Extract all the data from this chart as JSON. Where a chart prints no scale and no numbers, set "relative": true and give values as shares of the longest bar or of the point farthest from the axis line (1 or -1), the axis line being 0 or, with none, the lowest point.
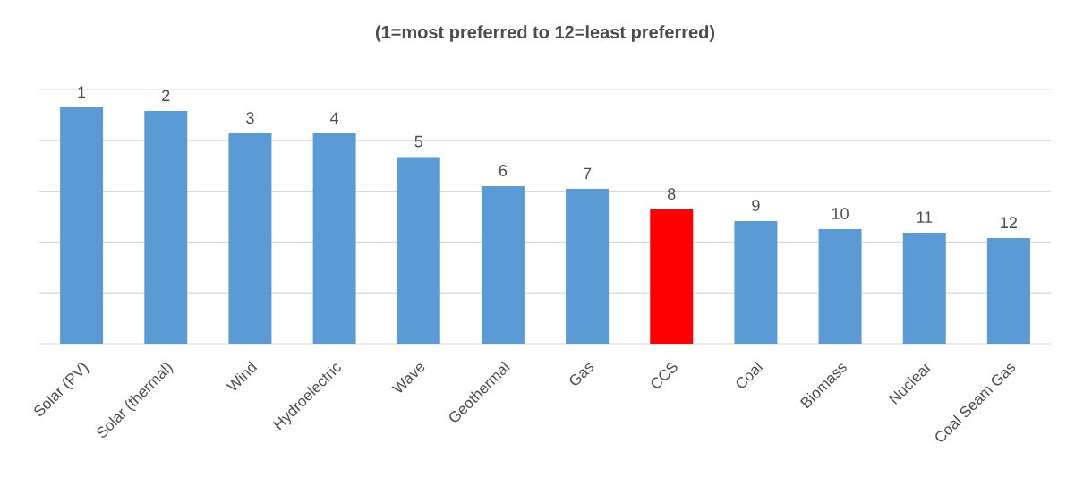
{
  "chart_data": {
    "type": "bar",
    "title": "(1=most preferred to 12=least preferred)",
    "categories": [
      "Solar (PV)",
      "Solar (thermal)",
      "Wind",
      "Hydroelectric",
      "Wave",
      "Geothermal",
      "Gas",
      "CCS",
      "Coal",
      "Biomass",
      "Nuclear",
      "Coal Seam Gas"
    ],
    "values": [
      1,
      0.985,
      0.89,
      0.89,
      0.79,
      0.667,
      0.655,
      0.568,
      0.519,
      0.485,
      0.47,
      0.447
    ],
    "annotations": [
      {
        "text": "1",
        "x": "Solar (PV)",
        "y": 1
      },
      {
        "text": "2",
        "x": "Solar (thermal)",
        "y": 0.985
      },
      {
        "text": "3",
        "x": "Wind",
        "y": 0.89
      },
      {
        "text": "4",
        "x": "Hydroelectric",
        "y": 0.89
      },
      {
        "text": "5",
        "x": "Wave",
        "y": 0.79
      },
      {
        "text": "6",
        "x": "Geothermal",
        "y": 0.667
      },
      {
        "text": "7",
        "x": "Gas",
        "y": 0.655
      },
      {
        "text": "8",
        "x": "CCS",
        "y": 0.568
      },
      {
        "text": "9",
        "x": "Coal",
        "y": 0.519
      },
      {
        "text": "10",
        "x": "Biomass",
        "y": 0.485
      },
      {
        "text": "11",
        "x": "Nuclear",
        "y": 0.47
      },
      {
        "text": "12",
        "x": "Coal Seam Gas",
        "y": 0.447
      }
    ],
    "colors": [
      "#5b9bd5",
      "#5b9bd5",
      "#5b9bd5",
      "#5b9bd5",
      "#5b9bd5",
      "#5b9bd5",
      "#5b9bd5",
      "#ff0000",
      "#5b9bd5",
      "#5b9bd5",
      "#5b9bd5",
      "#5b9bd5"
    ],
    "relative": true,
    "grid": "y",
    "tick_labels": "x"
  }
}
